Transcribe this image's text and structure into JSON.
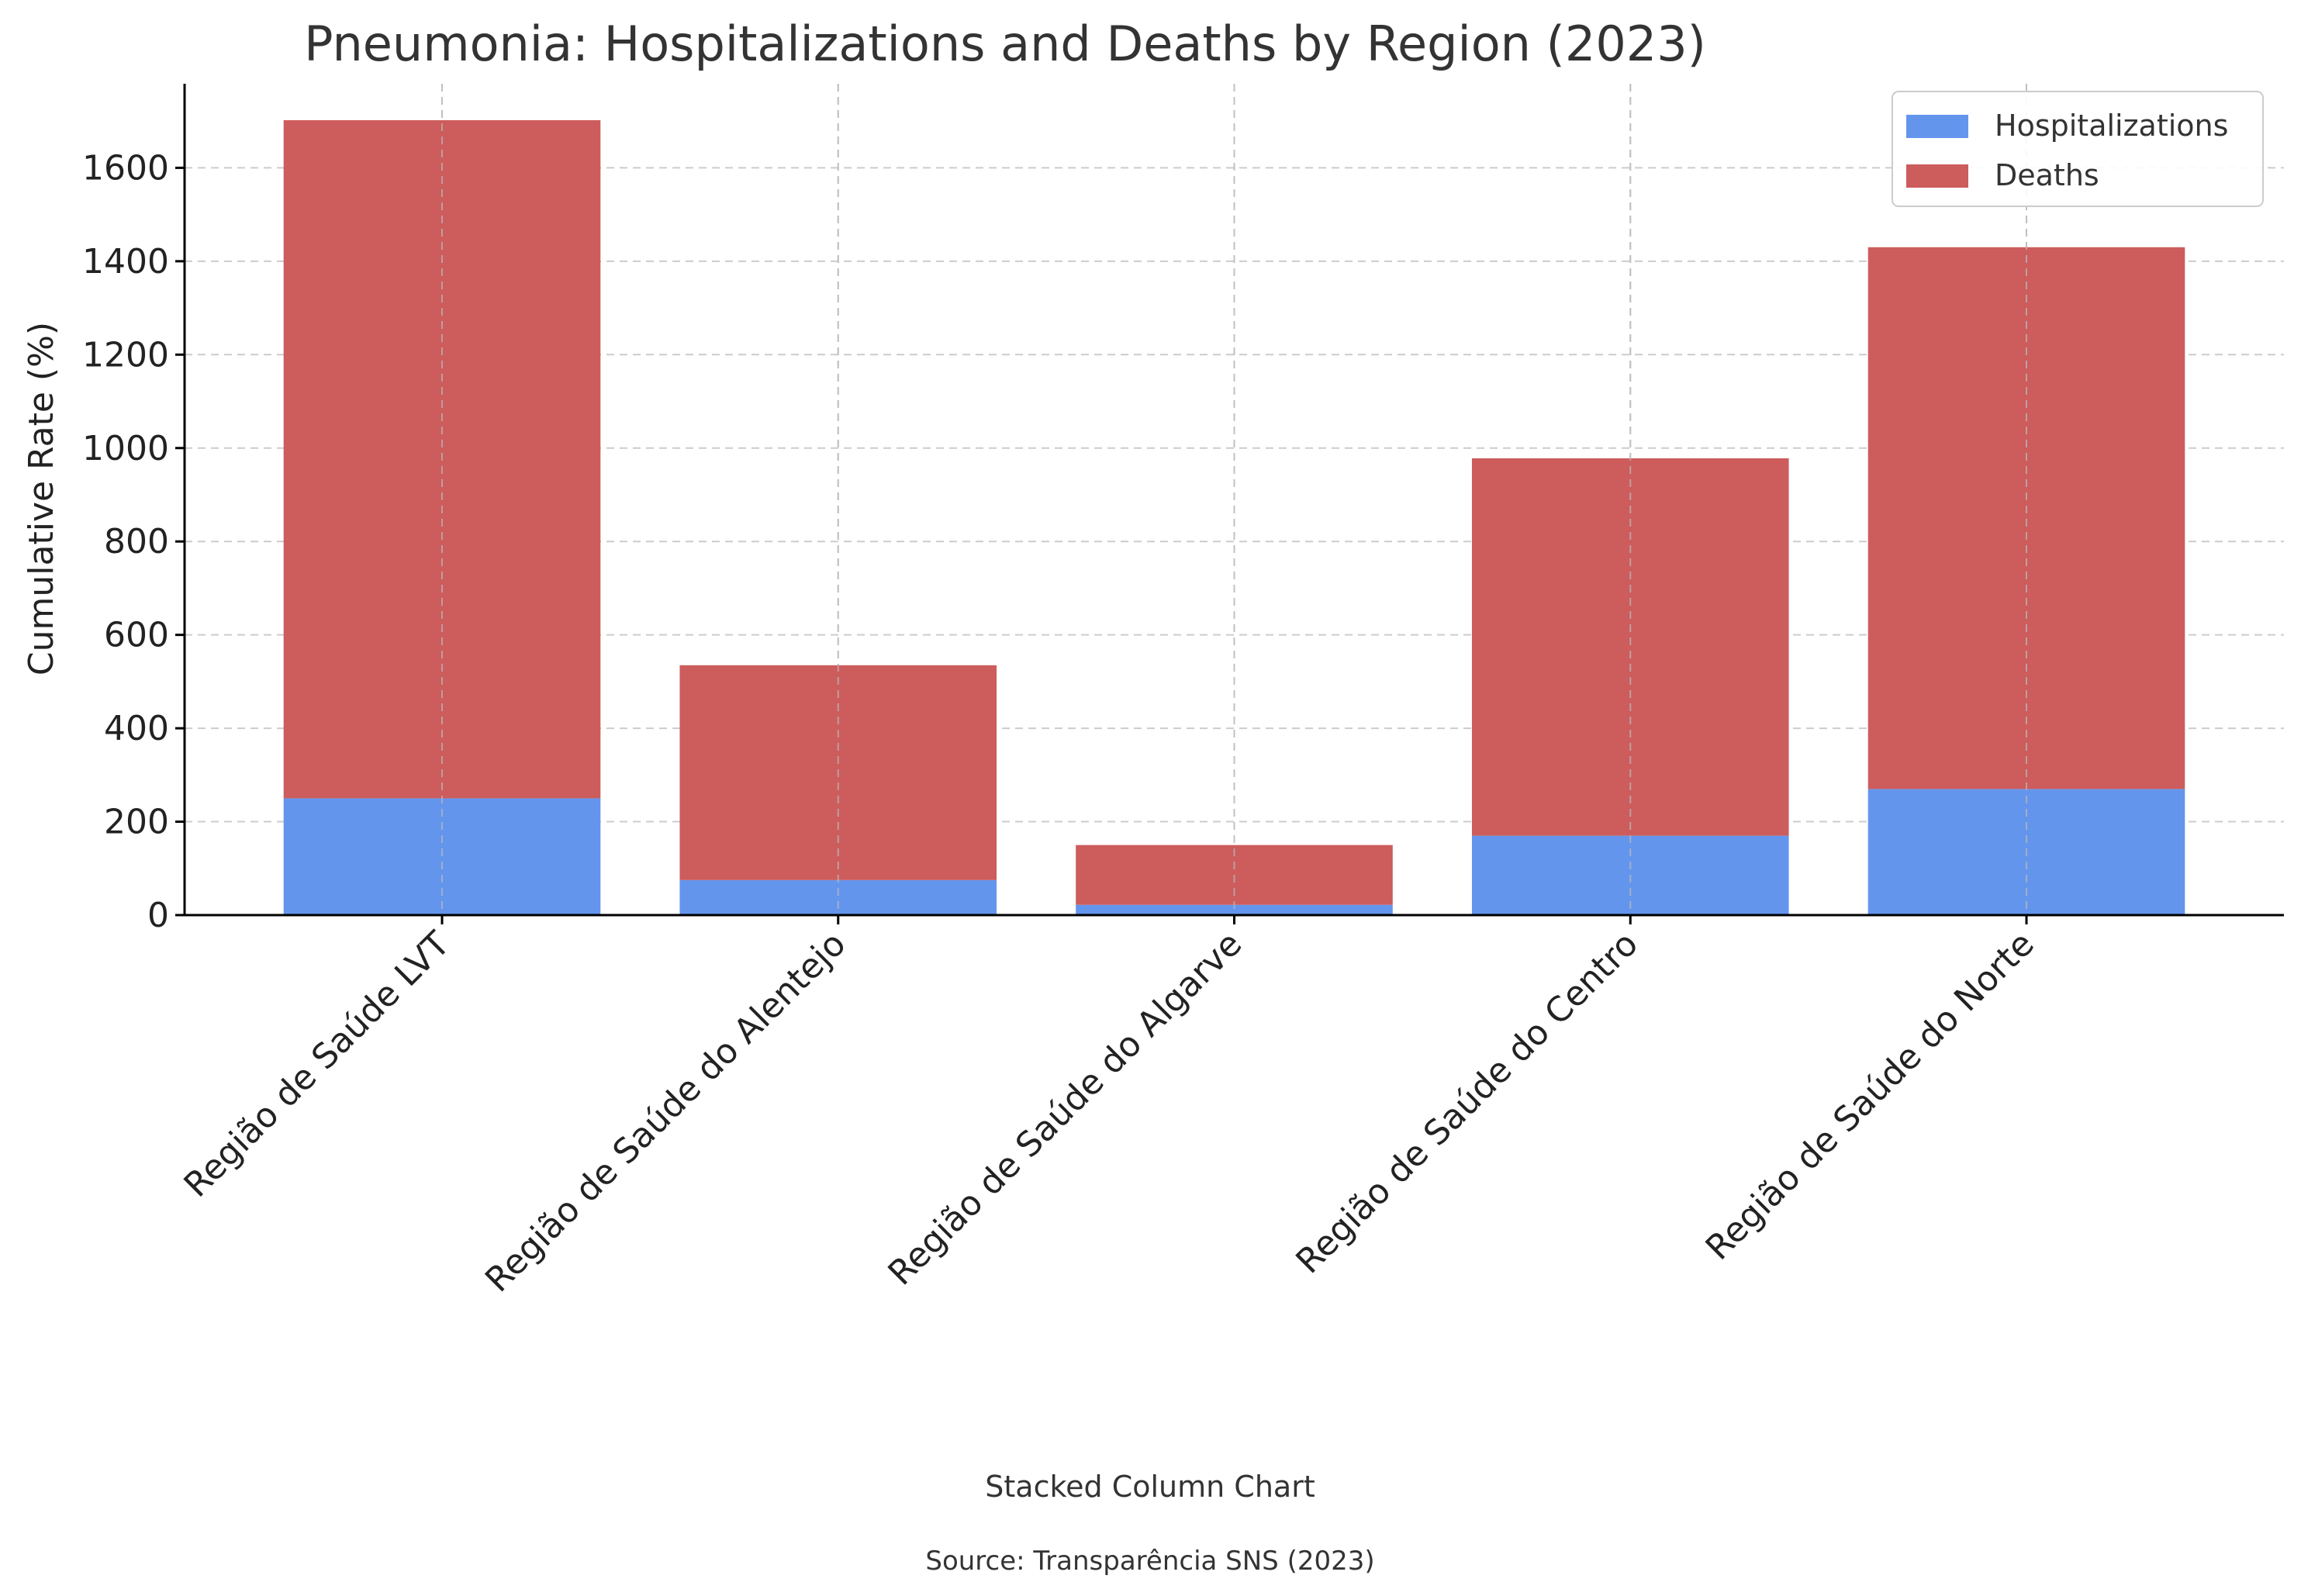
{
  "chart_data": {
    "type": "bar",
    "stacked": true,
    "title": "Pneumonia: Hospitalizations and Deaths by Region (2023)",
    "xlabel": "",
    "ylabel": "Cumulative Rate (%)",
    "ylim": [
      0,
      1780
    ],
    "yticks": [
      0,
      200,
      400,
      600,
      800,
      1000,
      1200,
      1400,
      1600
    ],
    "grid": true,
    "legend_position": "top-right",
    "categories": [
      "Região de Saúde LVT",
      "Região de Saúde do Alentejo",
      "Região de Saúde do Algarve",
      "Região de Saúde do Centro",
      "Região de Saúde do Norte"
    ],
    "series": [
      {
        "name": "Hospitalizations",
        "color": "#6495ed",
        "values": [
          250,
          75,
          22,
          170,
          270
        ]
      },
      {
        "name": "Deaths",
        "color": "#cd5c5c",
        "values": [
          1452,
          460,
          128,
          808,
          1160
        ]
      }
    ],
    "caption": "Stacked Column Chart",
    "source": "Source: Transparência SNS (2023)"
  }
}
